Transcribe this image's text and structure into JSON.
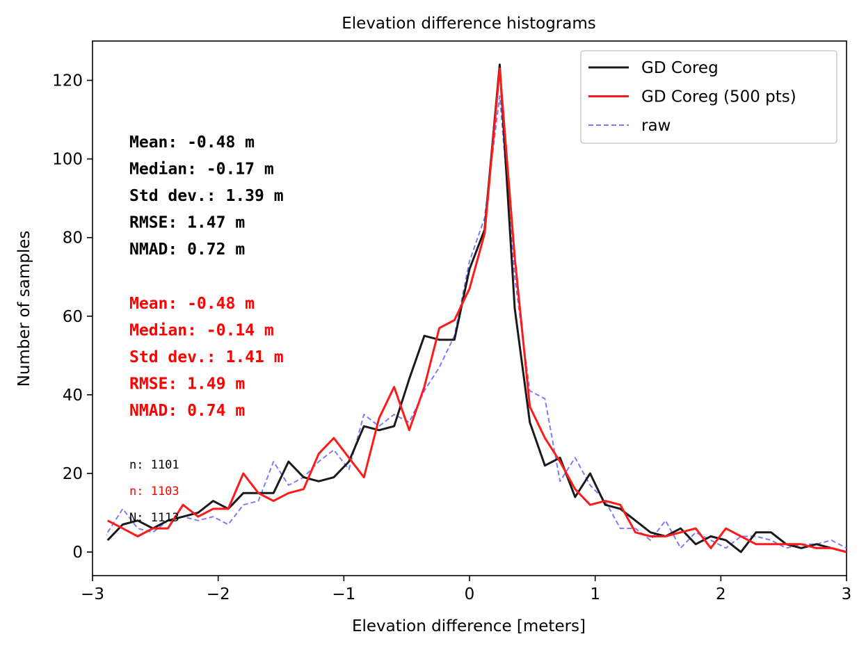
{
  "chart_data": {
    "type": "line",
    "title": "Elevation difference histograms",
    "xlabel": "Elevation difference [meters]",
    "ylabel": "Number of samples",
    "xlim": [
      -3,
      3
    ],
    "ylim": [
      -6,
      130
    ],
    "xticks": [
      -3,
      -2,
      -1,
      0,
      1,
      2,
      3
    ],
    "xtick_labels": [
      "−3",
      "−2",
      "−1",
      "0",
      "1",
      "2",
      "3"
    ],
    "yticks": [
      0,
      20,
      40,
      60,
      80,
      100,
      120
    ],
    "ytick_labels": [
      "0",
      "20",
      "40",
      "60",
      "80",
      "100",
      "120"
    ],
    "grid": false,
    "legend_position": "top-right",
    "series": [
      {
        "name": "GD Coreg",
        "color": "#1a1a1a",
        "style": "solid",
        "x": [
          -2.88,
          -2.76,
          -2.64,
          -2.52,
          -2.4,
          -2.28,
          -2.16,
          -2.04,
          -1.92,
          -1.8,
          -1.68,
          -1.56,
          -1.44,
          -1.32,
          -1.2,
          -1.08,
          -0.96,
          -0.84,
          -0.72,
          -0.6,
          -0.48,
          -0.36,
          -0.24,
          -0.12,
          0.0,
          0.12,
          0.24,
          0.36,
          0.48,
          0.6,
          0.72,
          0.84,
          0.96,
          1.08,
          1.2,
          1.32,
          1.44,
          1.56,
          1.68,
          1.8,
          1.92,
          2.04,
          2.16,
          2.28,
          2.4,
          2.52,
          2.64,
          2.76,
          2.88,
          3.0
        ],
        "y": [
          3,
          7,
          8,
          6,
          8,
          9,
          10,
          13,
          11,
          15,
          15,
          15,
          23,
          19,
          18,
          19,
          23,
          32,
          31,
          32,
          44,
          55,
          54,
          54,
          72,
          82,
          124,
          62,
          33,
          22,
          24,
          14,
          20,
          12,
          11,
          8,
          5,
          4,
          6,
          2,
          4,
          3,
          0,
          5,
          5,
          2,
          1,
          2,
          1,
          0
        ]
      },
      {
        "name": "GD Coreg (500 pts)",
        "color": "#ff1a1a",
        "style": "solid",
        "x": [
          -2.88,
          -2.76,
          -2.64,
          -2.52,
          -2.4,
          -2.28,
          -2.16,
          -2.04,
          -1.92,
          -1.8,
          -1.68,
          -1.56,
          -1.44,
          -1.32,
          -1.2,
          -1.08,
          -0.96,
          -0.84,
          -0.72,
          -0.6,
          -0.48,
          -0.36,
          -0.24,
          -0.12,
          0.0,
          0.12,
          0.24,
          0.36,
          0.48,
          0.6,
          0.72,
          0.84,
          0.96,
          1.08,
          1.2,
          1.32,
          1.44,
          1.56,
          1.68,
          1.8,
          1.92,
          2.04,
          2.16,
          2.28,
          2.4,
          2.52,
          2.64,
          2.76,
          2.88,
          3.0
        ],
        "y": [
          8,
          6,
          4,
          6,
          6,
          12,
          9,
          11,
          11,
          20,
          15,
          13,
          15,
          16,
          25,
          29,
          24,
          19,
          34,
          42,
          31,
          42,
          57,
          59,
          67,
          81,
          123,
          75,
          37,
          29,
          23,
          16,
          12,
          13,
          12,
          5,
          4,
          4,
          5,
          6,
          1,
          6,
          4,
          2,
          2,
          2,
          2,
          1,
          1,
          0
        ]
      },
      {
        "name": "raw",
        "color": "#7b7bf7",
        "style": "dashed",
        "x": [
          -2.88,
          -2.76,
          -2.64,
          -2.52,
          -2.4,
          -2.28,
          -2.16,
          -2.04,
          -1.92,
          -1.8,
          -1.68,
          -1.56,
          -1.44,
          -1.32,
          -1.2,
          -1.08,
          -0.96,
          -0.84,
          -0.72,
          -0.6,
          -0.48,
          -0.36,
          -0.24,
          -0.12,
          0.0,
          0.12,
          0.24,
          0.36,
          0.48,
          0.6,
          0.72,
          0.84,
          0.96,
          1.08,
          1.2,
          1.32,
          1.44,
          1.56,
          1.68,
          1.8,
          1.92,
          2.04,
          2.16,
          2.28,
          2.4,
          2.52,
          2.64,
          2.76,
          2.88,
          3.0
        ],
        "y": [
          5,
          11,
          6,
          5,
          8,
          9,
          8,
          9,
          7,
          12,
          13,
          23,
          17,
          19,
          23,
          26,
          21,
          35,
          32,
          35,
          33,
          41,
          47,
          55,
          74,
          85,
          116,
          70,
          41,
          39,
          18,
          24,
          17,
          13,
          6,
          6,
          3,
          8,
          1,
          5,
          3,
          1,
          4,
          4,
          3,
          1,
          2,
          2,
          3,
          1
        ]
      }
    ],
    "stats_blocks": [
      {
        "color": "#000000",
        "lines": [
          "Mean: -0.48 m",
          "Median: -0.17 m",
          "Std dev.: 1.39 m",
          "RMSE: 1.47 m",
          "NMAD: 0.72 m"
        ]
      },
      {
        "color": "#ff0000",
        "lines": [
          "Mean: -0.48 m",
          "Median: -0.14 m",
          "Std dev.: 1.41 m",
          "RMSE: 1.49 m",
          "NMAD: 0.74 m"
        ]
      }
    ],
    "counts": [
      {
        "text": "n: 1101",
        "color": "#000000"
      },
      {
        "text": "n: 1103",
        "color": "#ff0000"
      },
      {
        "text": "N: 1113",
        "color": "#000000"
      }
    ]
  }
}
